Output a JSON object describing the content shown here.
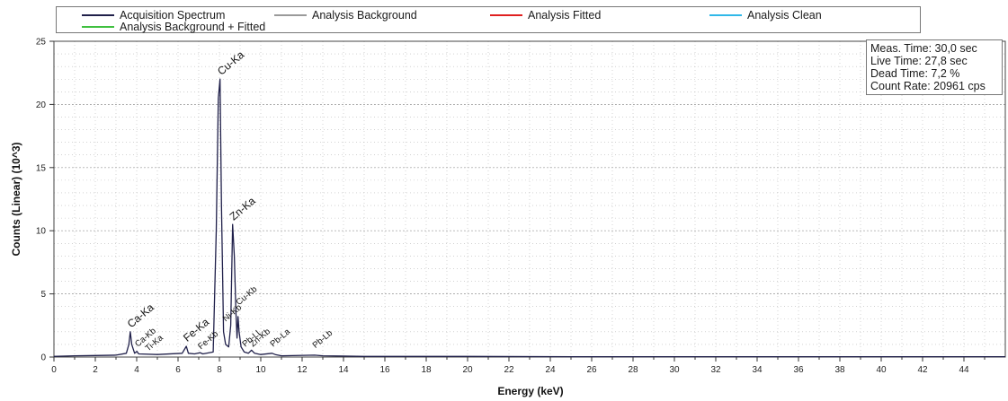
{
  "legend": [
    {
      "label": "Acquisition Spectrum",
      "color": "#20204a"
    },
    {
      "label": "Analysis Background",
      "color": "#9a9a9a"
    },
    {
      "label": "Analysis Fitted",
      "color": "#e02020"
    },
    {
      "label": "Analysis Clean",
      "color": "#30b8e8"
    },
    {
      "label": "Analysis Background + Fitted",
      "color": "#40c040"
    }
  ],
  "info": {
    "meas_time": "Meas. Time: 30,0 sec",
    "live_time": "Live Time: 27,8 sec",
    "dead_time": "Dead Time: 7,2 %",
    "count_rate": "Count Rate: 20961 cps"
  },
  "chart_data": {
    "type": "line",
    "xlabel": "Energy (keV)",
    "ylabel": "Counts (Linear) (10^3)",
    "xlim": [
      0,
      46
    ],
    "ylim": [
      0,
      25
    ],
    "xticks": [
      0,
      2,
      4,
      6,
      8,
      10,
      12,
      14,
      16,
      18,
      20,
      22,
      24,
      26,
      28,
      30,
      32,
      34,
      36,
      38,
      40,
      42,
      44
    ],
    "yticks": [
      0,
      5,
      10,
      15,
      20,
      25
    ],
    "grid": true,
    "legend_position": "top",
    "series": [
      {
        "name": "Acquisition Spectrum",
        "x": [
          0,
          1,
          2,
          3,
          3.5,
          3.62,
          3.69,
          3.76,
          3.9,
          4.01,
          4.1,
          5,
          6.2,
          6.4,
          6.5,
          6.8,
          7.06,
          7.2,
          7.7,
          7.85,
          7.95,
          8.03,
          8.1,
          8.2,
          8.3,
          8.45,
          8.55,
          8.64,
          8.72,
          8.8,
          8.85,
          8.9,
          8.95,
          9.05,
          9.2,
          9.4,
          9.55,
          9.7,
          10,
          10.55,
          10.7,
          11,
          12.6,
          13,
          15,
          20,
          25,
          30,
          35,
          40,
          46
        ],
        "y": [
          0.05,
          0.1,
          0.12,
          0.15,
          0.3,
          1.0,
          2.0,
          1.0,
          0.3,
          0.45,
          0.25,
          0.2,
          0.3,
          0.85,
          0.3,
          0.25,
          0.35,
          0.25,
          0.4,
          10.0,
          20.5,
          22.0,
          12.0,
          2.0,
          1.0,
          0.8,
          2.5,
          10.5,
          8.0,
          3.5,
          1.5,
          3.2,
          2.0,
          0.8,
          0.4,
          0.3,
          0.55,
          0.3,
          0.2,
          0.3,
          0.2,
          0.1,
          0.15,
          0.1,
          0.05,
          0.05,
          0.03,
          0.03,
          0.03,
          0.03,
          0.03
        ]
      }
    ],
    "annotations": [
      {
        "text": "Cu-Ka",
        "x": 8.05,
        "y": 22.0
      },
      {
        "text": "Zn-Ka",
        "x": 8.64,
        "y": 10.5
      },
      {
        "text": "Ca-Ka",
        "x": 3.69,
        "y": 2.0
      },
      {
        "text": "Ca-Kb",
        "x": 4.01,
        "y": 0.5
      },
      {
        "text": "Ti-Ka",
        "x": 4.51,
        "y": 0.15
      },
      {
        "text": "Fe-Ka",
        "x": 6.4,
        "y": 0.9
      },
      {
        "text": "Fe-Kb",
        "x": 7.06,
        "y": 0.3
      },
      {
        "text": "Ni-Kb",
        "x": 8.26,
        "y": 2.5
      },
      {
        "text": "Cu-Kb",
        "x": 8.9,
        "y": 3.8
      },
      {
        "text": "Pb-Ll",
        "x": 9.2,
        "y": 0.5
      },
      {
        "text": "Zn-Kb",
        "x": 9.57,
        "y": 0.5
      },
      {
        "text": "Pb-La",
        "x": 10.55,
        "y": 0.5
      },
      {
        "text": "Pb-Lb",
        "x": 12.6,
        "y": 0.4
      }
    ]
  }
}
